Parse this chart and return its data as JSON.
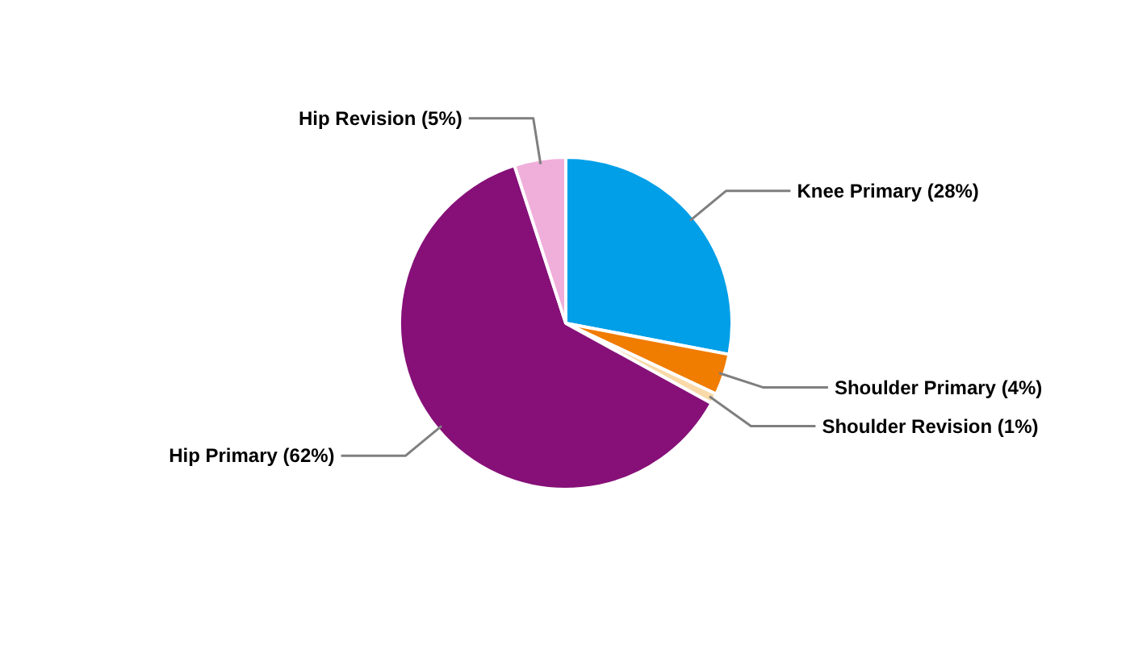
{
  "chart_data": {
    "type": "pie",
    "categories": [
      "Knee Primary (28%)",
      "Shoulder Primary (4%)",
      "Shoulder Revision (1%)",
      "Hip Primary (62%)",
      "Hip Revision (5%)"
    ],
    "values": [
      28,
      4,
      1,
      62,
      5
    ],
    "colors": [
      "#009fe8",
      "#f07c00",
      "#f9d9a8",
      "#861078",
      "#f0aedb"
    ]
  }
}
